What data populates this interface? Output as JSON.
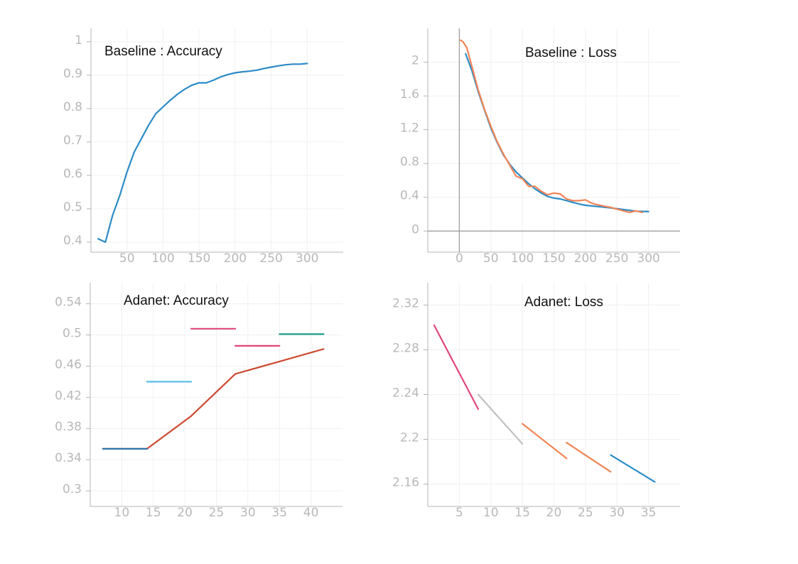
{
  "chart_data": [
    {
      "type": "line",
      "title": "Baseline : Accuracy",
      "xlim": [
        0,
        350
      ],
      "ylim": [
        0.37,
        1.04
      ],
      "xticks": [
        50,
        100,
        150,
        200,
        250,
        300
      ],
      "yticks": [
        0.4,
        0.5,
        0.6,
        0.7,
        0.8,
        0.9,
        1
      ],
      "grid": true,
      "series": [
        {
          "color": "#2c8bc6",
          "x": [
            10,
            20,
            30,
            40,
            50,
            60,
            70,
            80,
            90,
            100,
            110,
            120,
            130,
            140,
            150,
            160,
            170,
            180,
            190,
            200,
            210,
            220,
            230,
            240,
            250,
            260,
            270,
            280,
            290,
            300
          ],
          "y": [
            0.41,
            0.4,
            0.48,
            0.54,
            0.61,
            0.67,
            0.71,
            0.75,
            0.785,
            0.805,
            0.825,
            0.843,
            0.858,
            0.87,
            0.877,
            0.877,
            0.885,
            0.895,
            0.902,
            0.907,
            0.91,
            0.912,
            0.915,
            0.92,
            0.924,
            0.928,
            0.931,
            0.933,
            0.933,
            0.935
          ]
        }
      ]
    },
    {
      "type": "line",
      "title": "Baseline : Loss",
      "xlim": [
        -50,
        350
      ],
      "ylim": [
        -0.25,
        2.4
      ],
      "xticks": [
        0,
        50,
        100,
        150,
        200,
        250,
        300
      ],
      "yticks": [
        0,
        0.4,
        0.8,
        1.2,
        1.6,
        2
      ],
      "grid": true,
      "zero_axes": true,
      "series": [
        {
          "color": "#2c8bc6",
          "x": [
            10,
            20,
            30,
            40,
            50,
            60,
            70,
            80,
            90,
            100,
            110,
            120,
            130,
            140,
            150,
            160,
            170,
            180,
            190,
            200,
            220,
            240,
            260,
            280,
            300
          ],
          "y": [
            2.1,
            1.9,
            1.65,
            1.43,
            1.22,
            1.05,
            0.9,
            0.79,
            0.7,
            0.63,
            0.56,
            0.5,
            0.45,
            0.41,
            0.39,
            0.38,
            0.36,
            0.34,
            0.32,
            0.305,
            0.29,
            0.275,
            0.255,
            0.235,
            0.23
          ]
        },
        {
          "color": "#f28455",
          "x": [
            2,
            6,
            12,
            20,
            30,
            40,
            50,
            60,
            70,
            80,
            90,
            100,
            110,
            120,
            125,
            130,
            140,
            150,
            160,
            170,
            180,
            190,
            200,
            210,
            220,
            240,
            250,
            260,
            270,
            280,
            290
          ],
          "y": [
            2.26,
            2.24,
            2.17,
            1.95,
            1.67,
            1.44,
            1.24,
            1.06,
            0.91,
            0.78,
            0.65,
            0.62,
            0.53,
            0.53,
            0.5,
            0.47,
            0.43,
            0.45,
            0.44,
            0.38,
            0.36,
            0.36,
            0.37,
            0.33,
            0.31,
            0.28,
            0.26,
            0.24,
            0.22,
            0.24,
            0.22
          ]
        }
      ]
    },
    {
      "type": "line",
      "title": "Adanet: Accuracy",
      "xlim": [
        5,
        45
      ],
      "ylim": [
        0.28,
        0.567
      ],
      "xticks": [
        10,
        15,
        20,
        25,
        30,
        35,
        40
      ],
      "yticks": [
        0.3,
        0.34,
        0.38,
        0.42,
        0.46,
        0.5,
        0.54
      ],
      "grid": true,
      "series": [
        {
          "color": "#cc4a30",
          "x": [
            7,
            14,
            21,
            28,
            35,
            42
          ],
          "y": [
            0.354,
            0.354,
            0.396,
            0.45,
            0.466,
            0.482
          ]
        },
        {
          "color": "#2575b0",
          "x": [
            7,
            14
          ],
          "y": [
            0.354,
            0.354
          ]
        },
        {
          "color": "#5bbee8",
          "x": [
            14,
            21
          ],
          "y": [
            0.44,
            0.44
          ]
        },
        {
          "color": "#e0457b",
          "x": [
            21,
            28
          ],
          "y": [
            0.508,
            0.508
          ]
        },
        {
          "color": "#e0457b",
          "x": [
            28,
            35
          ],
          "y": [
            0.486,
            0.486
          ]
        },
        {
          "color": "#1a9c8c",
          "x": [
            35,
            42
          ],
          "y": [
            0.501,
            0.501
          ]
        }
      ]
    },
    {
      "type": "line",
      "title": "Adanet: Loss",
      "xlim": [
        0,
        40
      ],
      "ylim": [
        2.14,
        2.34
      ],
      "xticks": [
        5,
        10,
        15,
        20,
        25,
        30,
        35
      ],
      "yticks": [
        2.16,
        2.2,
        2.24,
        2.28,
        2.32
      ],
      "grid": true,
      "series": [
        {
          "color": "#e0457b",
          "x": [
            1,
            8
          ],
          "y": [
            2.302,
            2.227
          ]
        },
        {
          "color": "#c0c0c0",
          "x": [
            8,
            15
          ],
          "y": [
            2.24,
            2.196
          ]
        },
        {
          "color": "#f28455",
          "x": [
            15,
            22
          ],
          "y": [
            2.214,
            2.183
          ]
        },
        {
          "color": "#f28455",
          "x": [
            22,
            29
          ],
          "y": [
            2.197,
            2.171
          ]
        },
        {
          "color": "#2c8bc6",
          "x": [
            29,
            36
          ],
          "y": [
            2.186,
            2.162
          ]
        }
      ]
    }
  ]
}
